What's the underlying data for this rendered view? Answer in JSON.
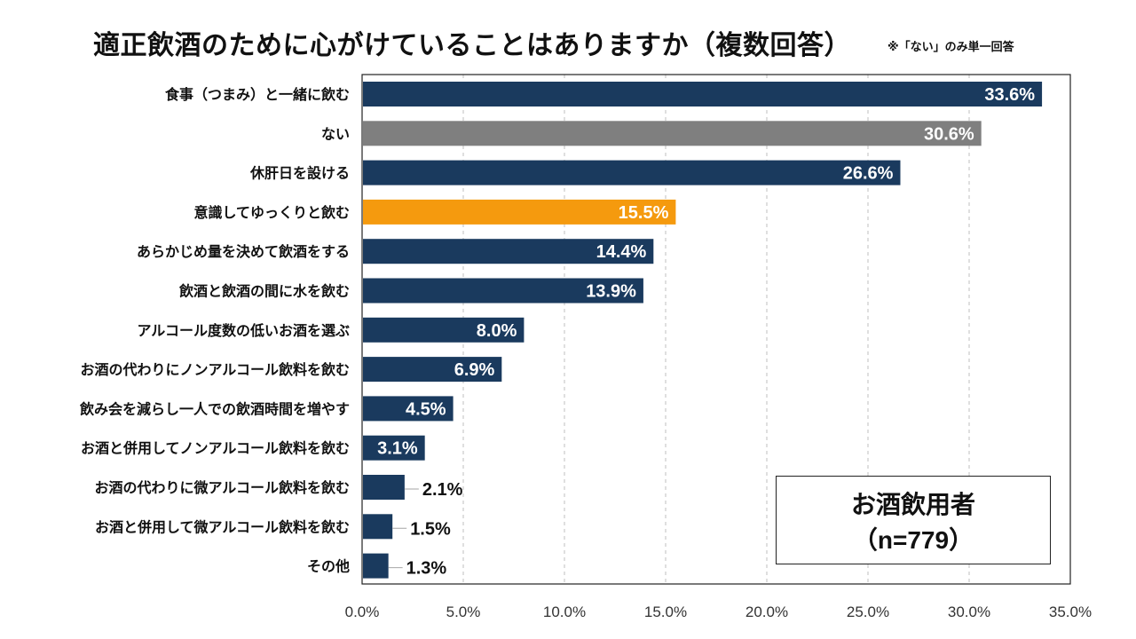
{
  "chart_data": {
    "type": "bar",
    "orientation": "horizontal",
    "title": "適正飲酒のために心がけていることはありますか（複数回答）",
    "note": "※「ない」のみ単一回答",
    "categories": [
      "食事（つまみ）と一緒に飲む",
      "ない",
      "休肝日を設ける",
      "意識してゆっくりと飲む",
      "あらかじめ量を決めて飲酒をする",
      "飲酒と飲酒の間に水を飲む",
      "アルコール度数の低いお酒を選ぶ",
      "お酒の代わりにノンアルコール飲料を飲む",
      "飲み会を減らし一人での飲酒時間を増やす",
      "お酒と併用してノンアルコール飲料を飲む",
      "お酒の代わりに微アルコール飲料を飲む",
      "お酒と併用して微アルコール飲料を飲む",
      "その他"
    ],
    "values": [
      33.6,
      30.6,
      26.6,
      15.5,
      14.4,
      13.9,
      8.0,
      6.9,
      4.5,
      3.1,
      2.1,
      1.5,
      1.3
    ],
    "value_labels": [
      "33.6%",
      "30.6%",
      "26.6%",
      "15.5%",
      "14.4%",
      "13.9%",
      "8.0%",
      "6.9%",
      "4.5%",
      "3.1%",
      "2.1%",
      "1.5%",
      "1.3%"
    ],
    "bar_colors": [
      "#1a3a5e",
      "#7f7f7f",
      "#1a3a5e",
      "#f59a0e",
      "#1a3a5e",
      "#1a3a5e",
      "#1a3a5e",
      "#1a3a5e",
      "#1a3a5e",
      "#1a3a5e",
      "#1a3a5e",
      "#1a3a5e",
      "#1a3a5e"
    ],
    "xlim": [
      0,
      35
    ],
    "x_ticks": [
      0,
      5,
      10,
      15,
      20,
      25,
      30,
      35
    ],
    "x_tick_labels": [
      "0.0%",
      "5.0%",
      "10.0%",
      "15.0%",
      "20.0%",
      "25.0%",
      "30.0%",
      "35.0%"
    ],
    "grid": "vertical dashed",
    "legend": {
      "line1": "お酒飲用者",
      "line2": "（n=779）",
      "placement": "bottom-right"
    }
  }
}
